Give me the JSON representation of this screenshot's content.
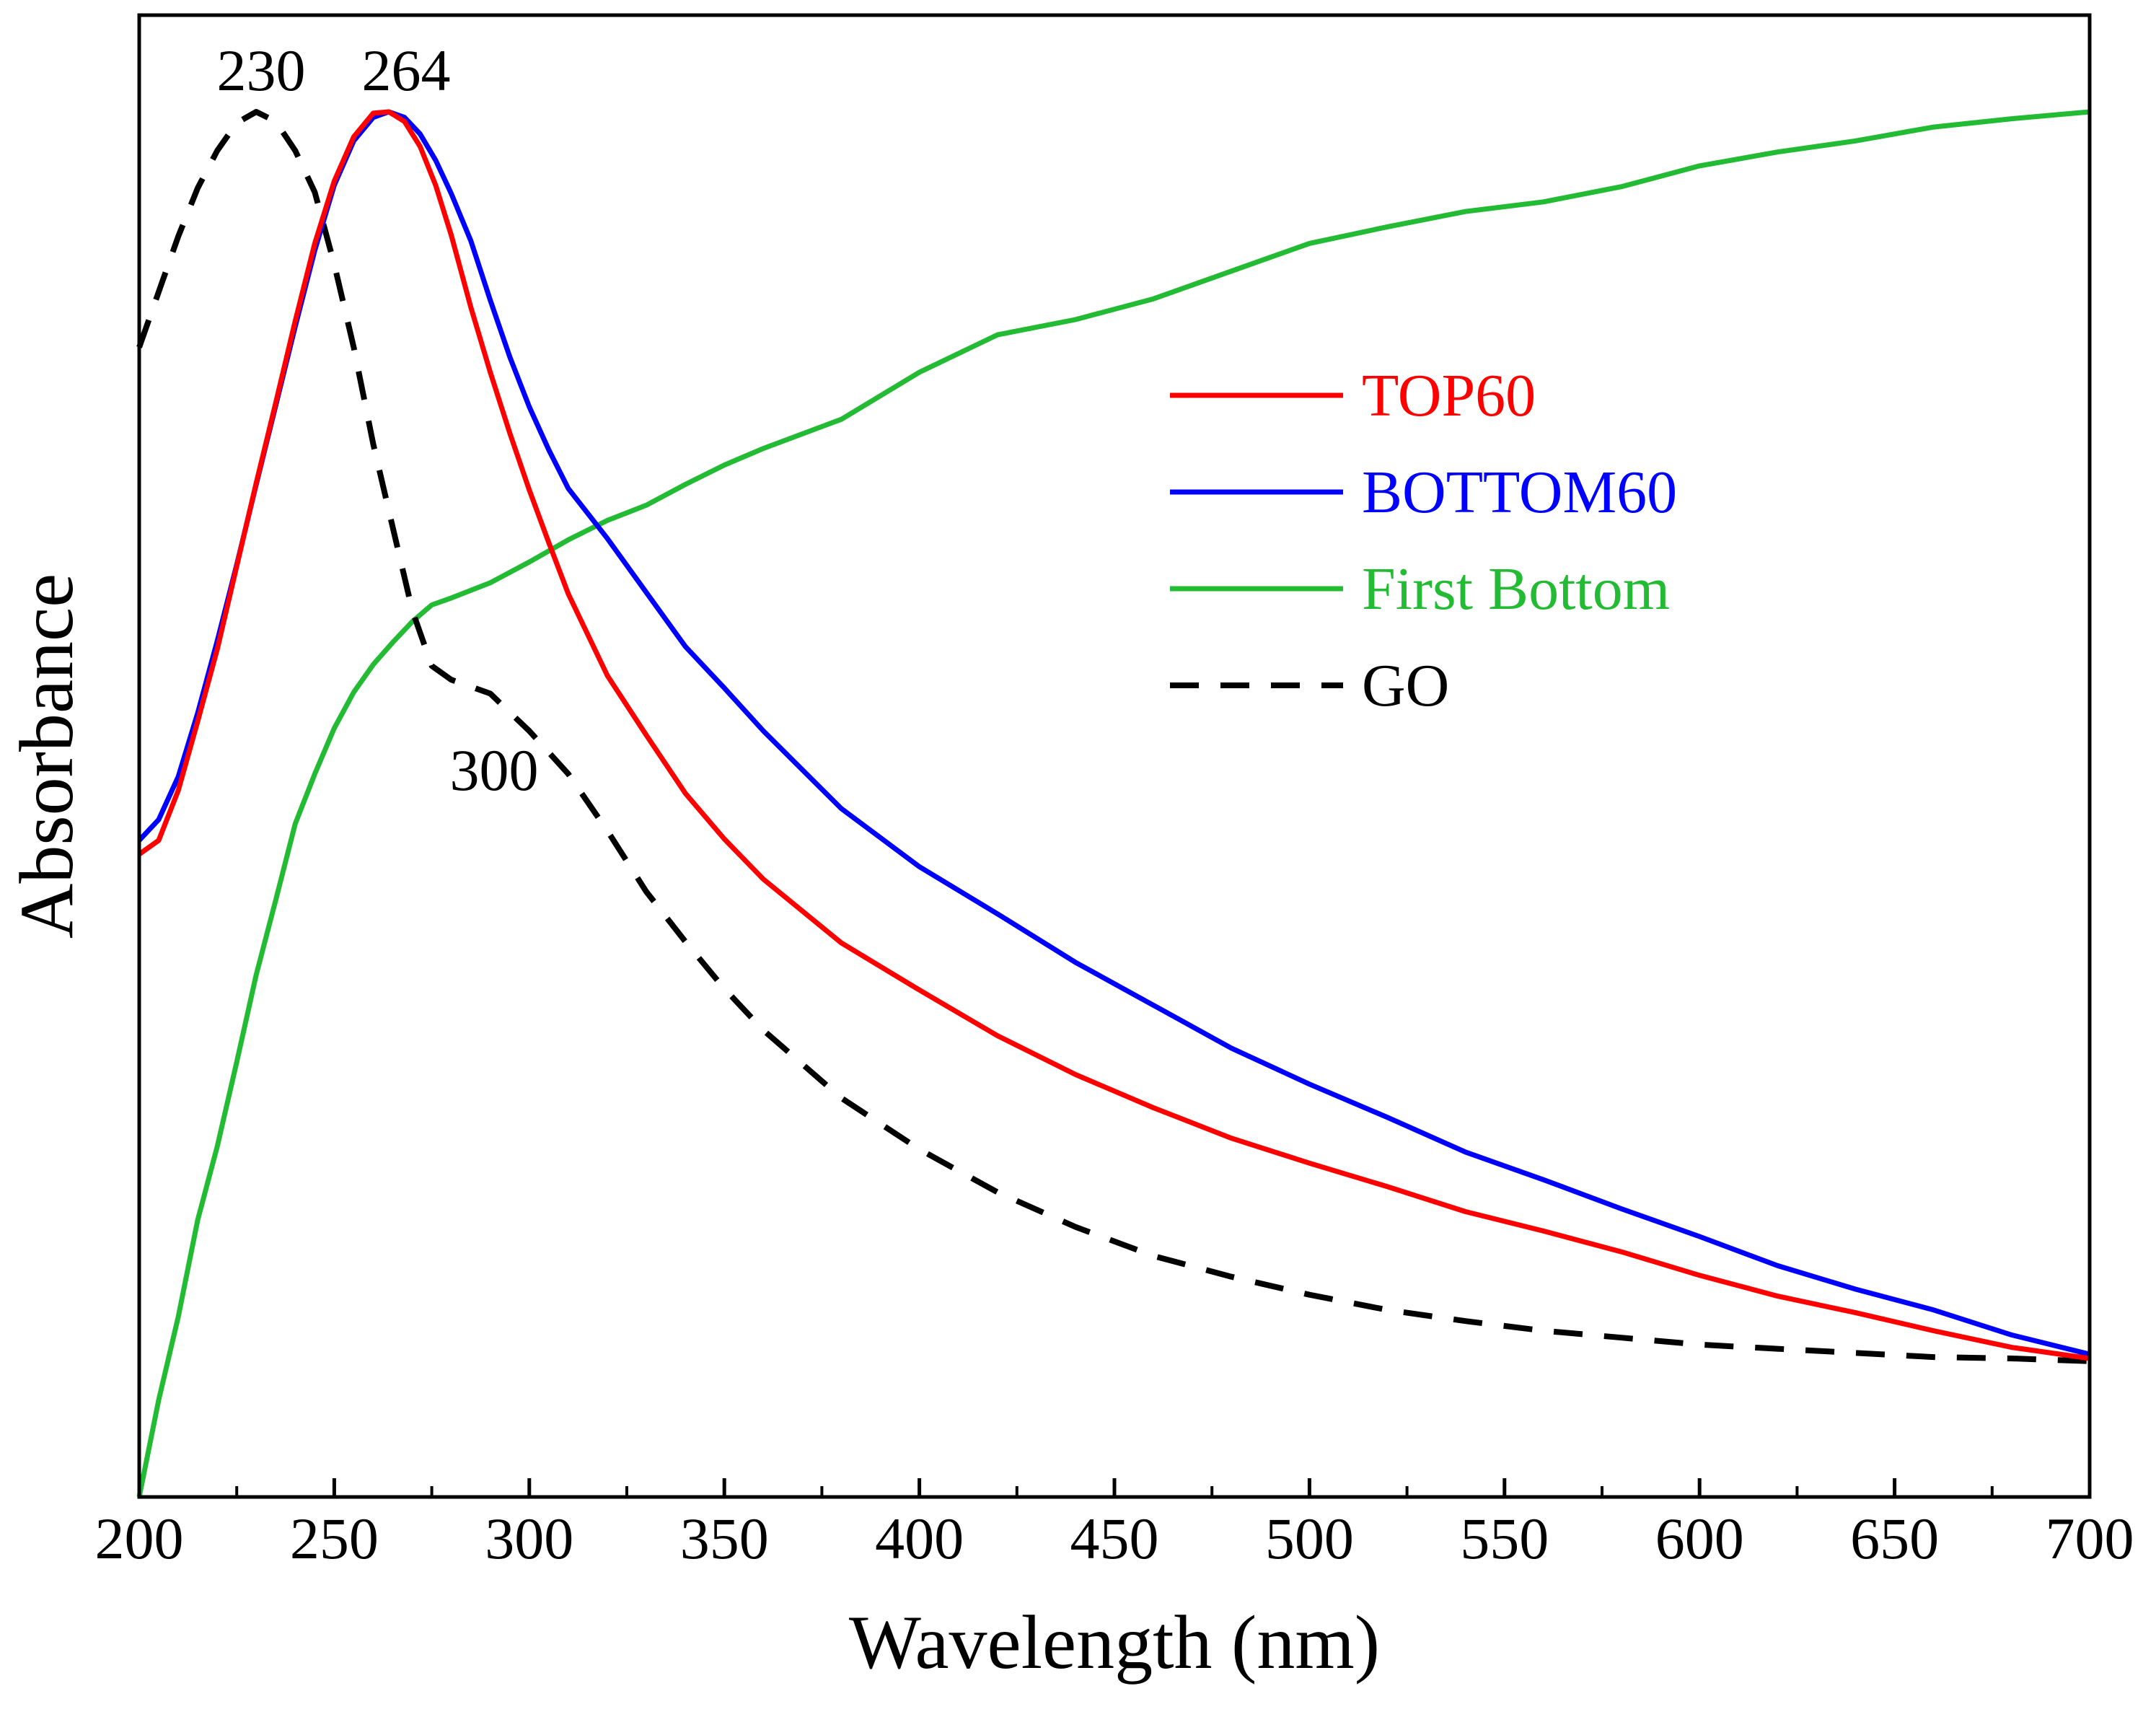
{
  "chart_data": {
    "type": "line",
    "title": "",
    "xlabel": "Wavelength (nm)",
    "ylabel": "Absorbance",
    "xlim": [
      200,
      700
    ],
    "ylim": [
      0,
      1
    ],
    "x_ticks": [
      200,
      250,
      300,
      350,
      400,
      450,
      500,
      550,
      600,
      650,
      700
    ],
    "x_tick_labels": [
      "200",
      "250",
      "300",
      "350",
      "400",
      "450",
      "500",
      "550",
      "600",
      "650",
      "700"
    ],
    "y_ticks_shown": false,
    "legend_position": "top-right",
    "series": [
      {
        "name": "TOP60",
        "color": "#ff0000",
        "dash": "solid",
        "x": [
          200,
          205,
          210,
          215,
          220,
          225,
          230,
          235,
          240,
          245,
          250,
          255,
          260,
          264,
          268,
          272,
          276,
          280,
          285,
          290,
          295,
          300,
          305,
          310,
          320,
          330,
          340,
          350,
          360,
          380,
          400,
          420,
          440,
          460,
          480,
          500,
          520,
          540,
          560,
          580,
          600,
          620,
          640,
          660,
          680,
          700
        ],
        "y": [
          0.464,
          0.474,
          0.51,
          0.56,
          0.612,
          0.672,
          0.732,
          0.79,
          0.849,
          0.905,
          0.95,
          0.982,
          0.999,
          1.0,
          0.993,
          0.975,
          0.947,
          0.911,
          0.859,
          0.812,
          0.768,
          0.727,
          0.689,
          0.652,
          0.593,
          0.55,
          0.508,
          0.475,
          0.446,
          0.4,
          0.366,
          0.333,
          0.305,
          0.281,
          0.259,
          0.241,
          0.224,
          0.206,
          0.192,
          0.177,
          0.16,
          0.145,
          0.133,
          0.12,
          0.108,
          0.1
        ]
      },
      {
        "name": "BOTTOM60",
        "color": "#0000ff",
        "dash": "solid",
        "x": [
          200,
          205,
          210,
          215,
          220,
          225,
          230,
          235,
          240,
          245,
          250,
          255,
          260,
          264,
          268,
          272,
          276,
          280,
          285,
          290,
          295,
          300,
          305,
          310,
          320,
          330,
          340,
          350,
          360,
          380,
          400,
          420,
          440,
          460,
          480,
          500,
          520,
          540,
          560,
          580,
          600,
          620,
          640,
          660,
          680,
          700
        ],
        "y": [
          0.474,
          0.489,
          0.52,
          0.566,
          0.618,
          0.673,
          0.731,
          0.788,
          0.845,
          0.9,
          0.947,
          0.979,
          0.996,
          1.0,
          0.996,
          0.984,
          0.965,
          0.941,
          0.907,
          0.864,
          0.823,
          0.787,
          0.756,
          0.728,
          0.692,
          0.653,
          0.614,
          0.584,
          0.553,
          0.497,
          0.455,
          0.421,
          0.386,
          0.355,
          0.324,
          0.298,
          0.274,
          0.249,
          0.229,
          0.208,
          0.188,
          0.167,
          0.15,
          0.135,
          0.117,
          0.103
        ]
      },
      {
        "name": "First Bottom",
        "color": "#22bb33",
        "dash": "solid",
        "x": [
          200,
          205,
          210,
          215,
          220,
          225,
          230,
          235,
          240,
          245,
          250,
          255,
          260,
          265,
          270,
          275,
          280,
          290,
          300,
          310,
          320,
          330,
          340,
          350,
          360,
          380,
          400,
          420,
          440,
          460,
          480,
          500,
          520,
          540,
          560,
          580,
          600,
          620,
          640,
          660,
          680,
          700
        ],
        "y": [
          0.0,
          0.07,
          0.13,
          0.2,
          0.253,
          0.314,
          0.377,
          0.431,
          0.486,
          0.522,
          0.555,
          0.581,
          0.601,
          0.617,
          0.632,
          0.644,
          0.649,
          0.66,
          0.675,
          0.691,
          0.705,
          0.716,
          0.731,
          0.745,
          0.757,
          0.778,
          0.812,
          0.839,
          0.85,
          0.865,
          0.885,
          0.905,
          0.917,
          0.928,
          0.935,
          0.946,
          0.961,
          0.971,
          0.979,
          0.989,
          0.995,
          1.0
        ]
      },
      {
        "name": "GO",
        "color": "#000000",
        "dash": "dashed",
        "x": [
          200,
          205,
          210,
          215,
          220,
          225,
          230,
          235,
          240,
          245,
          250,
          255,
          260,
          265,
          270,
          275,
          280,
          290,
          300,
          310,
          320,
          330,
          340,
          350,
          360,
          380,
          400,
          420,
          440,
          460,
          480,
          500,
          520,
          540,
          560,
          580,
          600,
          620,
          640,
          660,
          680,
          700
        ],
        "y": [
          0.83,
          0.87,
          0.91,
          0.945,
          0.972,
          0.992,
          1.0,
          0.993,
          0.972,
          0.942,
          0.89,
          0.83,
          0.76,
          0.7,
          0.64,
          0.6,
          0.59,
          0.58,
          0.553,
          0.522,
          0.481,
          0.437,
          0.401,
          0.367,
          0.337,
          0.288,
          0.251,
          0.22,
          0.195,
          0.174,
          0.159,
          0.146,
          0.135,
          0.127,
          0.12,
          0.115,
          0.11,
          0.107,
          0.104,
          0.101,
          0.1,
          0.098
        ]
      }
    ],
    "annotations": [
      {
        "text": "230",
        "x": 230
      },
      {
        "text": "264",
        "x": 264
      },
      {
        "text": "300",
        "x": 300
      }
    ]
  }
}
